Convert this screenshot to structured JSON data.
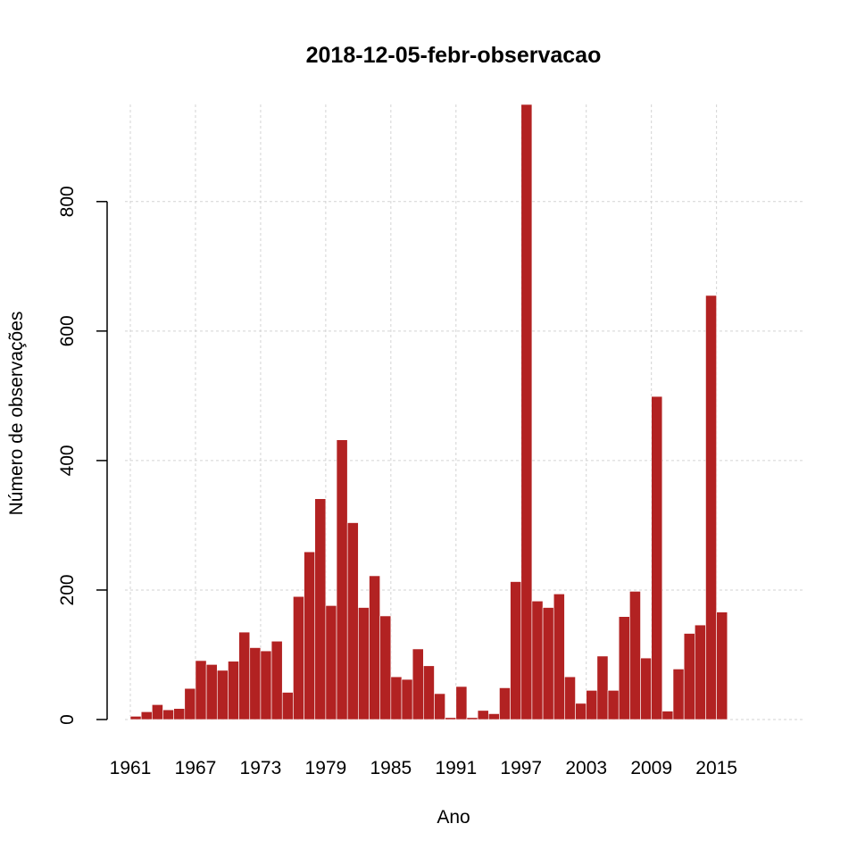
{
  "chart_data": {
    "type": "bar",
    "title": "2018-12-05-febr-observacao",
    "xlabel": "Ano",
    "ylabel": "Número de observações",
    "bar_color": "#B22222",
    "grid": true,
    "grid_color": "#D3D3D3",
    "ylim": [
      0,
      950
    ],
    "yticks": [
      0,
      200,
      400,
      600,
      800
    ],
    "xticks": [
      1961,
      1967,
      1973,
      1979,
      1985,
      1991,
      1997,
      2003,
      2009,
      2015
    ],
    "x": [
      1961,
      1962,
      1963,
      1964,
      1965,
      1966,
      1967,
      1968,
      1969,
      1970,
      1971,
      1972,
      1973,
      1974,
      1975,
      1976,
      1977,
      1978,
      1979,
      1980,
      1981,
      1982,
      1983,
      1984,
      1985,
      1986,
      1987,
      1988,
      1989,
      1990,
      1991,
      1992,
      1993,
      1994,
      1995,
      1996,
      1997,
      1998,
      1999,
      2000,
      2001,
      2002,
      2003,
      2004,
      2005,
      2006,
      2007,
      2008,
      2009,
      2010,
      2011,
      2012,
      2013,
      2014,
      2015,
      2016
    ],
    "values": [
      5,
      12,
      23,
      15,
      17,
      48,
      91,
      85,
      76,
      90,
      135,
      111,
      106,
      121,
      42,
      190,
      259,
      341,
      176,
      432,
      304,
      173,
      222,
      160,
      66,
      62,
      109,
      83,
      40,
      3,
      51,
      3,
      14,
      9,
      49,
      213,
      950,
      183,
      173,
      194,
      66,
      25,
      45,
      98,
      45,
      159,
      198,
      95,
      499,
      13,
      78,
      133,
      146,
      655,
      166,
      0
    ]
  }
}
